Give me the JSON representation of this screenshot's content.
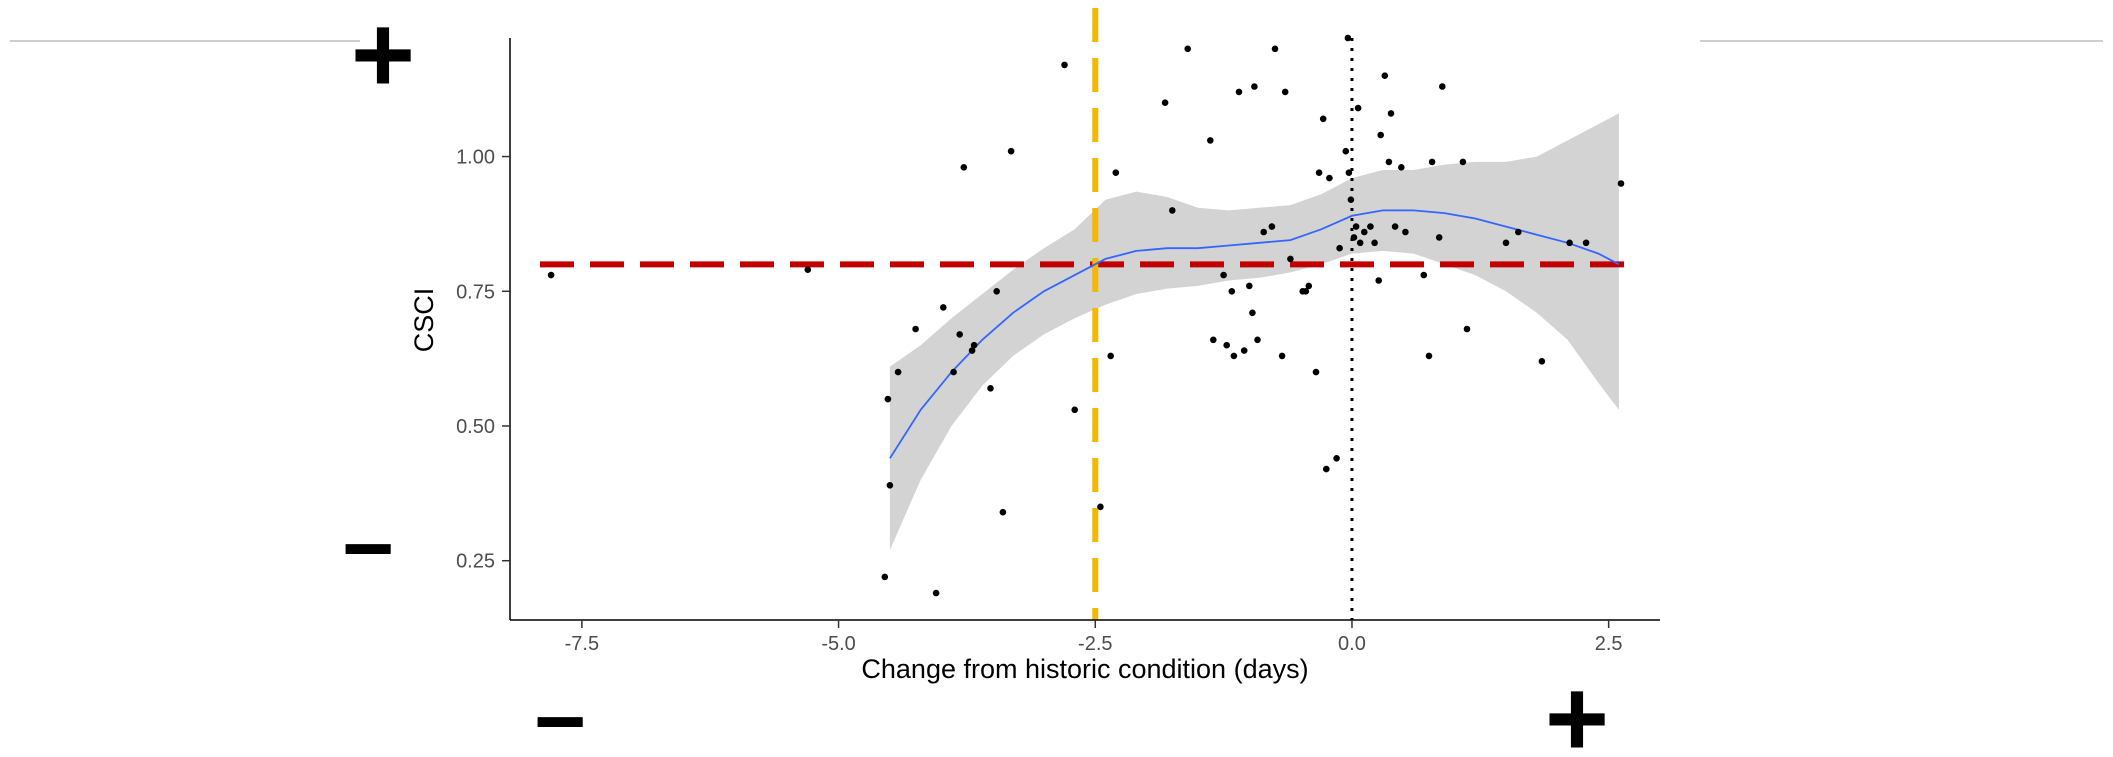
{
  "chart_data": {
    "type": "scatter",
    "title": "",
    "xlabel": "Change from historic condition (days)",
    "ylabel": "CSCI",
    "xlim": [
      -8.2,
      3.0
    ],
    "ylim": [
      0.14,
      1.22
    ],
    "x_ticks": [
      -7.5,
      -5.0,
      -2.5,
      0.0,
      2.5
    ],
    "x_tick_labels": [
      "-7.5",
      "-5.0",
      "-2.5",
      "0.0",
      "2.5"
    ],
    "y_ticks": [
      0.25,
      0.5,
      0.75,
      1.0
    ],
    "y_tick_labels": [
      "0.25",
      "0.50",
      "0.75",
      "1.00"
    ],
    "grid": false,
    "points": [
      [
        -7.8,
        0.78
      ],
      [
        -5.3,
        0.79
      ],
      [
        -4.55,
        0.22
      ],
      [
        -4.52,
        0.55
      ],
      [
        -4.5,
        0.39
      ],
      [
        -4.42,
        0.6
      ],
      [
        -4.25,
        0.68
      ],
      [
        -4.05,
        0.19
      ],
      [
        -3.98,
        0.72
      ],
      [
        -3.88,
        0.6
      ],
      [
        -3.82,
        0.67
      ],
      [
        -3.78,
        0.98
      ],
      [
        -3.7,
        0.64
      ],
      [
        -3.68,
        0.65
      ],
      [
        -3.52,
        0.57
      ],
      [
        -3.46,
        0.75
      ],
      [
        -3.4,
        0.34
      ],
      [
        -3.32,
        1.01
      ],
      [
        -2.8,
        1.17
      ],
      [
        -2.7,
        0.53
      ],
      [
        -2.45,
        0.35
      ],
      [
        -2.35,
        0.63
      ],
      [
        -2.3,
        0.97
      ],
      [
        -1.82,
        1.1
      ],
      [
        -1.75,
        0.9
      ],
      [
        -1.6,
        1.2
      ],
      [
        -1.38,
        1.03
      ],
      [
        -1.35,
        0.66
      ],
      [
        -1.25,
        0.78
      ],
      [
        -1.22,
        0.65
      ],
      [
        -1.17,
        0.75
      ],
      [
        -1.15,
        0.63
      ],
      [
        -1.1,
        1.12
      ],
      [
        -1.05,
        0.64
      ],
      [
        -1.0,
        0.76
      ],
      [
        -0.97,
        0.71
      ],
      [
        -0.95,
        1.13
      ],
      [
        -0.92,
        0.66
      ],
      [
        -0.86,
        0.86
      ],
      [
        -0.78,
        0.87
      ],
      [
        -0.75,
        1.2
      ],
      [
        -0.68,
        0.63
      ],
      [
        -0.65,
        1.12
      ],
      [
        -0.6,
        0.81
      ],
      [
        -0.48,
        0.75
      ],
      [
        -0.45,
        0.75
      ],
      [
        -0.42,
        0.76
      ],
      [
        -0.35,
        0.6
      ],
      [
        -0.32,
        0.97
      ],
      [
        -0.28,
        1.07
      ],
      [
        -0.25,
        0.42
      ],
      [
        -0.22,
        0.96
      ],
      [
        -0.15,
        0.44
      ],
      [
        -0.12,
        0.83
      ],
      [
        -0.06,
        1.01
      ],
      [
        -0.04,
        1.22
      ],
      [
        -0.03,
        0.97
      ],
      [
        -0.01,
        0.92
      ],
      [
        0.02,
        0.85
      ],
      [
        0.04,
        0.87
      ],
      [
        0.06,
        1.09
      ],
      [
        0.08,
        0.84
      ],
      [
        0.12,
        0.86
      ],
      [
        0.18,
        0.87
      ],
      [
        0.22,
        0.84
      ],
      [
        0.26,
        0.77
      ],
      [
        0.28,
        1.04
      ],
      [
        0.32,
        1.15
      ],
      [
        0.36,
        0.99
      ],
      [
        0.38,
        1.08
      ],
      [
        0.42,
        0.87
      ],
      [
        0.48,
        0.98
      ],
      [
        0.52,
        0.86
      ],
      [
        0.7,
        0.78
      ],
      [
        0.75,
        0.63
      ],
      [
        0.78,
        0.99
      ],
      [
        0.85,
        0.85
      ],
      [
        0.88,
        1.13
      ],
      [
        1.08,
        0.99
      ],
      [
        1.12,
        0.68
      ],
      [
        1.5,
        0.84
      ],
      [
        1.62,
        0.86
      ],
      [
        1.85,
        0.62
      ],
      [
        2.12,
        0.84
      ],
      [
        2.28,
        0.84
      ],
      [
        2.62,
        0.95
      ]
    ],
    "smooth_line": {
      "x": [
        -4.5,
        -4.2,
        -3.9,
        -3.6,
        -3.3,
        -3.0,
        -2.7,
        -2.4,
        -2.1,
        -1.8,
        -1.5,
        -1.2,
        -0.9,
        -0.6,
        -0.3,
        0.0,
        0.3,
        0.6,
        0.9,
        1.2,
        1.5,
        1.8,
        2.1,
        2.4,
        2.6
      ],
      "y": [
        0.44,
        0.53,
        0.6,
        0.66,
        0.71,
        0.75,
        0.78,
        0.81,
        0.825,
        0.83,
        0.83,
        0.835,
        0.84,
        0.845,
        0.865,
        0.89,
        0.9,
        0.9,
        0.895,
        0.885,
        0.87,
        0.855,
        0.84,
        0.82,
        0.8
      ],
      "color": "#3366ff"
    },
    "confidence_band": {
      "x": [
        -4.5,
        -4.2,
        -3.9,
        -3.6,
        -3.3,
        -3.0,
        -2.7,
        -2.4,
        -2.1,
        -1.8,
        -1.5,
        -1.2,
        -0.9,
        -0.6,
        -0.3,
        0.0,
        0.3,
        0.6,
        0.9,
        1.2,
        1.5,
        1.8,
        2.1,
        2.4,
        2.6
      ],
      "lower": [
        0.27,
        0.4,
        0.5,
        0.575,
        0.63,
        0.67,
        0.7,
        0.725,
        0.745,
        0.755,
        0.76,
        0.77,
        0.775,
        0.785,
        0.8,
        0.82,
        0.825,
        0.82,
        0.8,
        0.78,
        0.75,
        0.71,
        0.66,
        0.58,
        0.53
      ],
      "upper": [
        0.61,
        0.65,
        0.7,
        0.745,
        0.79,
        0.83,
        0.865,
        0.92,
        0.935,
        0.925,
        0.905,
        0.9,
        0.905,
        0.91,
        0.93,
        0.96,
        0.975,
        0.975,
        0.985,
        0.99,
        0.99,
        1.0,
        1.03,
        1.06,
        1.08
      ],
      "color": "#d3d3d3"
    },
    "reference_lines": [
      {
        "orientation": "horizontal",
        "value": 0.8,
        "style": "dashed",
        "color": "#c00000"
      },
      {
        "orientation": "vertical",
        "value": -2.5,
        "style": "dashed",
        "color": "#f5b800"
      },
      {
        "orientation": "vertical",
        "value": 0.0,
        "style": "dotted",
        "color": "#000000"
      }
    ]
  },
  "annotations": {
    "y_plus": "+",
    "y_minus": "−",
    "x_minus": "−",
    "x_plus": "+"
  }
}
